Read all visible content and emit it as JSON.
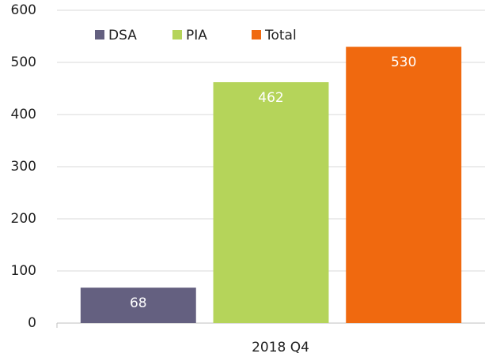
{
  "chart_data": {
    "type": "bar",
    "categories": [
      "2018 Q4"
    ],
    "series": [
      {
        "name": "DSA",
        "color": "#646080",
        "values": [
          68
        ]
      },
      {
        "name": "PIA",
        "color": "#b5d45a",
        "values": [
          462
        ]
      },
      {
        "name": "Total",
        "color": "#f0690f",
        "values": [
          530
        ]
      }
    ],
    "ylim": [
      0,
      600
    ],
    "yticks": [
      0,
      100,
      200,
      300,
      400,
      500,
      600
    ],
    "grid": true,
    "legend": "top"
  }
}
